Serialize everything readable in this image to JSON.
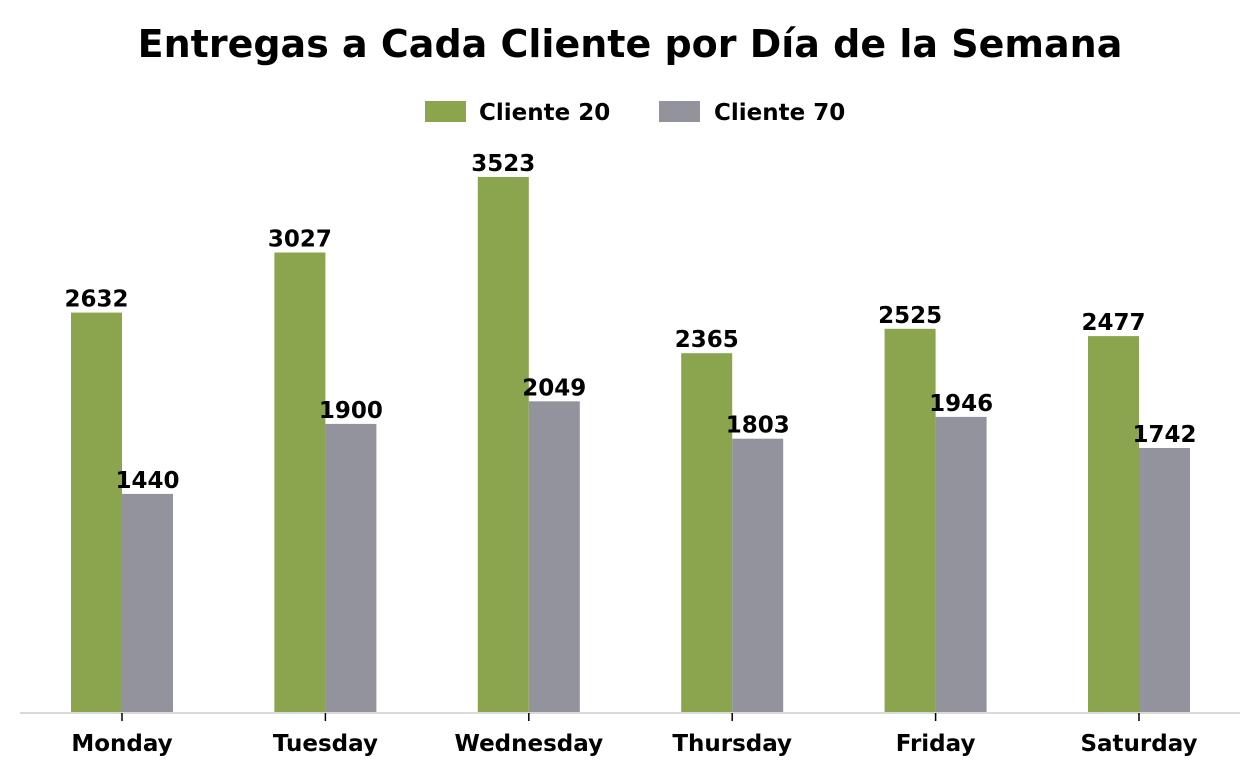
{
  "chart_data": {
    "type": "bar",
    "title": "Entregas a Cada Cliente por Día de la Semana",
    "xlabel": "",
    "ylabel": "",
    "categories": [
      "Monday",
      "Tuesday",
      "Wednesday",
      "Thursday",
      "Friday",
      "Saturday"
    ],
    "series": [
      {
        "name": "Cliente 20",
        "color": "#8aa54d",
        "values": [
          2632,
          3027,
          3523,
          2365,
          2525,
          2477
        ]
      },
      {
        "name": "Cliente 70",
        "color": "#93939e",
        "values": [
          1440,
          1900,
          2049,
          1803,
          1946,
          1742
        ]
      }
    ],
    "ylim": [
      0,
      3700
    ],
    "grid": false,
    "legend_position": "top-center",
    "show_data_labels": true,
    "axis_color": "#d9d9d9"
  }
}
